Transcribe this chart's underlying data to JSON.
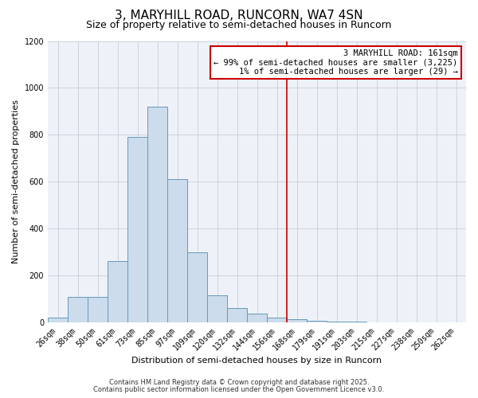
{
  "title": "3, MARYHILL ROAD, RUNCORN, WA7 4SN",
  "subtitle": "Size of property relative to semi-detached houses in Runcorn",
  "xlabel": "Distribution of semi-detached houses by size in Runcorn",
  "ylabel": "Number of semi-detached properties",
  "bar_color": "#ccdcec",
  "bar_edge_color": "#6699bb",
  "categories": [
    "26sqm",
    "38sqm",
    "50sqm",
    "61sqm",
    "73sqm",
    "85sqm",
    "97sqm",
    "109sqm",
    "120sqm",
    "132sqm",
    "144sqm",
    "156sqm",
    "168sqm",
    "179sqm",
    "191sqm",
    "203sqm",
    "215sqm",
    "227sqm",
    "238sqm",
    "250sqm",
    "262sqm"
  ],
  "values": [
    20,
    110,
    110,
    260,
    790,
    920,
    610,
    300,
    115,
    60,
    38,
    22,
    13,
    6,
    3,
    2,
    1,
    1,
    1,
    1,
    1
  ],
  "ylim": [
    0,
    1200
  ],
  "yticks": [
    0,
    200,
    400,
    600,
    800,
    1000,
    1200
  ],
  "vline_color": "#cc0000",
  "annotation_title": "3 MARYHILL ROAD: 161sqm",
  "annotation_line1": "← 99% of semi-detached houses are smaller (3,225)",
  "annotation_line2": "1% of semi-detached houses are larger (29) →",
  "annotation_box_color": "#ffffff",
  "annotation_box_edge": "#cc0000",
  "footer1": "Contains HM Land Registry data © Crown copyright and database right 2025.",
  "footer2": "Contains public sector information licensed under the Open Government Licence v3.0.",
  "bg_color": "#ffffff",
  "plot_bg_color": "#eef2f8",
  "grid_color": "#c8ccd8",
  "title_fontsize": 11,
  "subtitle_fontsize": 9,
  "axis_label_fontsize": 8,
  "tick_fontsize": 7,
  "footer_fontsize": 6,
  "annotation_fontsize": 7.5
}
